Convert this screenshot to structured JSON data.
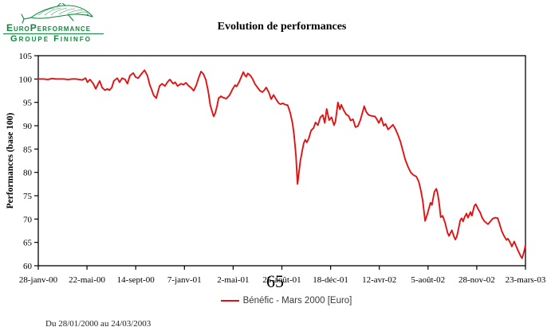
{
  "logo": {
    "company": "EuroPerformance",
    "group": "Groupe Fininfo",
    "color": "#0a8a3a"
  },
  "header": {
    "title": "Evolution de performances"
  },
  "watermark": {
    "text": "65"
  },
  "legend": {
    "label": "Bénéfic - Mars 2000 [Euro]"
  },
  "footer": {
    "date_range": "Du 28/01/2000 au 24/03/2003"
  },
  "chart_data": {
    "type": "line",
    "title": "Evolution de performances",
    "xlabel": "",
    "ylabel": "Performances (base 100)",
    "ylim": [
      60,
      105
    ],
    "yticks": [
      60,
      65,
      70,
      75,
      80,
      85,
      90,
      95,
      100,
      105
    ],
    "xticklabels": [
      "28-janv-00",
      "22-mai-00",
      "14-sept-00",
      "7-janv-01",
      "2-mai-01",
      "25-août-01",
      "18-déc-01",
      "12-avr-02",
      "5-août-02",
      "28-nov-02",
      "23-mars-03"
    ],
    "grid": false,
    "legend_position": "bottom",
    "plot_border": true,
    "axis_color": "#000000",
    "series": [
      {
        "name": "Bénéfic - Mars 2000 [Euro]",
        "color": "#e21212",
        "points": [
          [
            0.0,
            100.0
          ],
          [
            0.011,
            100.0
          ],
          [
            0.02,
            99.9
          ],
          [
            0.028,
            100.1
          ],
          [
            0.036,
            100.0
          ],
          [
            0.044,
            100.0
          ],
          [
            0.052,
            100.0
          ],
          [
            0.061,
            99.9
          ],
          [
            0.069,
            100.0
          ],
          [
            0.077,
            100.0
          ],
          [
            0.085,
            99.9
          ],
          [
            0.09,
            99.8
          ],
          [
            0.097,
            100.2
          ],
          [
            0.101,
            99.3
          ],
          [
            0.106,
            99.9
          ],
          [
            0.113,
            99.0
          ],
          [
            0.118,
            97.9
          ],
          [
            0.123,
            99.0
          ],
          [
            0.126,
            99.6
          ],
          [
            0.131,
            98.2
          ],
          [
            0.137,
            97.6
          ],
          [
            0.142,
            97.9
          ],
          [
            0.146,
            97.6
          ],
          [
            0.151,
            98.2
          ],
          [
            0.155,
            99.6
          ],
          [
            0.162,
            100.2
          ],
          [
            0.167,
            99.3
          ],
          [
            0.172,
            100.2
          ],
          [
            0.178,
            99.9
          ],
          [
            0.183,
            99.0
          ],
          [
            0.188,
            100.7
          ],
          [
            0.195,
            101.3
          ],
          [
            0.2,
            100.4
          ],
          [
            0.205,
            100.2
          ],
          [
            0.211,
            101.0
          ],
          [
            0.218,
            101.9
          ],
          [
            0.224,
            100.7
          ],
          [
            0.229,
            98.7
          ],
          [
            0.232,
            97.9
          ],
          [
            0.237,
            96.5
          ],
          [
            0.242,
            95.9
          ],
          [
            0.249,
            98.5
          ],
          [
            0.254,
            99.0
          ],
          [
            0.26,
            98.5
          ],
          [
            0.265,
            99.3
          ],
          [
            0.27,
            99.9
          ],
          [
            0.277,
            99.0
          ],
          [
            0.281,
            99.3
          ],
          [
            0.286,
            98.5
          ],
          [
            0.293,
            99.0
          ],
          [
            0.298,
            98.8
          ],
          [
            0.303,
            99.2
          ],
          [
            0.308,
            98.6
          ],
          [
            0.314,
            98.1
          ],
          [
            0.319,
            97.5
          ],
          [
            0.324,
            98.6
          ],
          [
            0.329,
            100.2
          ],
          [
            0.334,
            101.6
          ],
          [
            0.339,
            101.1
          ],
          [
            0.344,
            99.8
          ],
          [
            0.349,
            97.3
          ],
          [
            0.353,
            94.4
          ],
          [
            0.357,
            93.0
          ],
          [
            0.36,
            92.0
          ],
          [
            0.363,
            92.6
          ],
          [
            0.367,
            94.2
          ],
          [
            0.37,
            95.9
          ],
          [
            0.375,
            96.3
          ],
          [
            0.38,
            96.0
          ],
          [
            0.386,
            95.8
          ],
          [
            0.393,
            96.6
          ],
          [
            0.399,
            97.9
          ],
          [
            0.404,
            98.7
          ],
          [
            0.407,
            98.4
          ],
          [
            0.412,
            99.3
          ],
          [
            0.416,
            100.3
          ],
          [
            0.421,
            101.5
          ],
          [
            0.424,
            100.8
          ],
          [
            0.427,
            100.5
          ],
          [
            0.43,
            101.2
          ],
          [
            0.435,
            100.8
          ],
          [
            0.44,
            100.0
          ],
          [
            0.445,
            98.9
          ],
          [
            0.45,
            98.2
          ],
          [
            0.455,
            97.5
          ],
          [
            0.46,
            97.2
          ],
          [
            0.463,
            97.5
          ],
          [
            0.468,
            98.2
          ],
          [
            0.473,
            97.2
          ],
          [
            0.478,
            95.7
          ],
          [
            0.483,
            96.6
          ],
          [
            0.488,
            95.7
          ],
          [
            0.493,
            94.9
          ],
          [
            0.497,
            94.6
          ],
          [
            0.502,
            94.8
          ],
          [
            0.507,
            94.5
          ],
          [
            0.512,
            94.4
          ],
          [
            0.517,
            92.8
          ],
          [
            0.522,
            90.5
          ],
          [
            0.525,
            88.0
          ],
          [
            0.529,
            83.5
          ],
          [
            0.532,
            77.5
          ],
          [
            0.535,
            80.0
          ],
          [
            0.538,
            82.5
          ],
          [
            0.542,
            84.8
          ],
          [
            0.545,
            86.3
          ],
          [
            0.548,
            87.0
          ],
          [
            0.551,
            86.4
          ],
          [
            0.555,
            87.2
          ],
          [
            0.56,
            89.0
          ],
          [
            0.565,
            89.5
          ],
          [
            0.569,
            90.7
          ],
          [
            0.574,
            90.1
          ],
          [
            0.579,
            91.8
          ],
          [
            0.584,
            92.3
          ],
          [
            0.588,
            90.6
          ],
          [
            0.592,
            93.6
          ],
          [
            0.597,
            91.2
          ],
          [
            0.602,
            91.8
          ],
          [
            0.607,
            90.1
          ],
          [
            0.61,
            90.9
          ],
          [
            0.615,
            95.0
          ],
          [
            0.619,
            93.5
          ],
          [
            0.622,
            94.5
          ],
          [
            0.627,
            93.3
          ],
          [
            0.632,
            92.4
          ],
          [
            0.637,
            92.1
          ],
          [
            0.641,
            91.1
          ],
          [
            0.646,
            91.4
          ],
          [
            0.651,
            89.7
          ],
          [
            0.656,
            89.9
          ],
          [
            0.661,
            91.2
          ],
          [
            0.666,
            93.0
          ],
          [
            0.669,
            94.2
          ],
          [
            0.673,
            93.0
          ],
          [
            0.678,
            92.3
          ],
          [
            0.684,
            92.1
          ],
          [
            0.691,
            92.0
          ],
          [
            0.695,
            91.4
          ],
          [
            0.699,
            90.6
          ],
          [
            0.704,
            91.7
          ],
          [
            0.709,
            90.0
          ],
          [
            0.713,
            90.4
          ],
          [
            0.718,
            89.2
          ],
          [
            0.723,
            89.7
          ],
          [
            0.728,
            90.2
          ],
          [
            0.733,
            89.3
          ],
          [
            0.738,
            88.1
          ],
          [
            0.743,
            86.7
          ],
          [
            0.748,
            84.8
          ],
          [
            0.753,
            82.8
          ],
          [
            0.759,
            81.2
          ],
          [
            0.764,
            80.1
          ],
          [
            0.769,
            79.5
          ],
          [
            0.776,
            79.1
          ],
          [
            0.781,
            78.0
          ],
          [
            0.785,
            76.3
          ],
          [
            0.789,
            74.0
          ],
          [
            0.794,
            69.6
          ],
          [
            0.799,
            71.2
          ],
          [
            0.805,
            73.5
          ],
          [
            0.808,
            73.0
          ],
          [
            0.813,
            75.8
          ],
          [
            0.817,
            76.5
          ],
          [
            0.82,
            75.4
          ],
          [
            0.823,
            73.2
          ],
          [
            0.826,
            70.4
          ],
          [
            0.83,
            70.7
          ],
          [
            0.835,
            69.2
          ],
          [
            0.84,
            67.1
          ],
          [
            0.843,
            66.4
          ],
          [
            0.846,
            67.0
          ],
          [
            0.849,
            67.6
          ],
          [
            0.853,
            66.3
          ],
          [
            0.856,
            65.6
          ],
          [
            0.859,
            66.2
          ],
          [
            0.862,
            67.6
          ],
          [
            0.866,
            69.7
          ],
          [
            0.869,
            70.2
          ],
          [
            0.872,
            69.5
          ],
          [
            0.875,
            70.4
          ],
          [
            0.879,
            71.2
          ],
          [
            0.882,
            70.3
          ],
          [
            0.887,
            71.5
          ],
          [
            0.89,
            70.7
          ],
          [
            0.895,
            72.8
          ],
          [
            0.898,
            73.2
          ],
          [
            0.902,
            72.3
          ],
          [
            0.907,
            71.4
          ],
          [
            0.911,
            70.3
          ],
          [
            0.916,
            69.5
          ],
          [
            0.923,
            68.9
          ],
          [
            0.928,
            69.5
          ],
          [
            0.933,
            70.1
          ],
          [
            0.938,
            70.3
          ],
          [
            0.943,
            70.2
          ],
          [
            0.947,
            68.9
          ],
          [
            0.951,
            67.5
          ],
          [
            0.956,
            66.4
          ],
          [
            0.961,
            65.5
          ],
          [
            0.964,
            65.8
          ],
          [
            0.969,
            64.9
          ],
          [
            0.972,
            64.1
          ],
          [
            0.977,
            65.2
          ],
          [
            0.98,
            64.4
          ],
          [
            0.985,
            63.2
          ],
          [
            0.99,
            62.1
          ],
          [
            0.993,
            61.6
          ],
          [
            0.997,
            63.0
          ],
          [
            1.0,
            64.4
          ]
        ]
      }
    ]
  }
}
